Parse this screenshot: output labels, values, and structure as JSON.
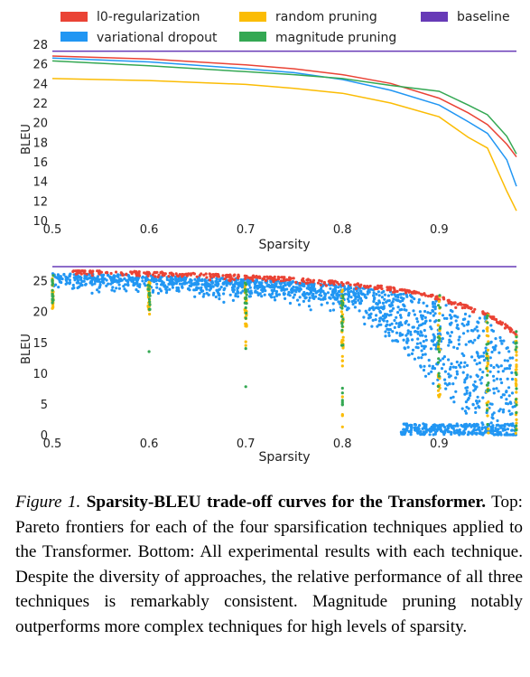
{
  "colors": {
    "l0": "#ea4335",
    "vd": "#2196f3",
    "random": "#fbbc04",
    "magnitude": "#34a853",
    "baseline": "#673ab7"
  },
  "chart_data": [
    {
      "type": "line",
      "title": "",
      "xlabel": "Sparsity",
      "ylabel": "BLEU",
      "xlim": [
        0.5,
        0.98
      ],
      "ylim": [
        10,
        28
      ],
      "xticks": [
        "0.5",
        "0.6",
        "0.7",
        "0.8",
        "0.9"
      ],
      "yticks": [
        "10",
        "12",
        "14",
        "16",
        "18",
        "20",
        "22",
        "24",
        "26",
        "28"
      ],
      "legend": [
        "l0-regularization",
        "random pruning",
        "baseline",
        "variational dropout",
        "magnitude pruning"
      ],
      "series": [
        {
          "name": "l0-regularization",
          "key": "l0",
          "x": [
            0.5,
            0.6,
            0.7,
            0.75,
            0.8,
            0.85,
            0.9,
            0.93,
            0.95,
            0.97,
            0.98
          ],
          "y": [
            26.8,
            26.5,
            25.9,
            25.5,
            24.9,
            24.0,
            22.5,
            21.0,
            19.8,
            17.8,
            16.5
          ]
        },
        {
          "name": "variational dropout",
          "key": "vd",
          "x": [
            0.5,
            0.6,
            0.7,
            0.75,
            0.8,
            0.85,
            0.9,
            0.93,
            0.95,
            0.97,
            0.98
          ],
          "y": [
            26.6,
            26.2,
            25.5,
            25.1,
            24.4,
            23.3,
            21.8,
            20.1,
            18.9,
            16.2,
            13.5
          ]
        },
        {
          "name": "random pruning",
          "key": "random",
          "x": [
            0.5,
            0.6,
            0.7,
            0.75,
            0.8,
            0.85,
            0.9,
            0.93,
            0.95,
            0.97,
            0.98
          ],
          "y": [
            24.5,
            24.3,
            23.9,
            23.5,
            23.0,
            22.0,
            20.6,
            18.5,
            17.4,
            13.0,
            11.0
          ]
        },
        {
          "name": "magnitude pruning",
          "key": "magnitude",
          "x": [
            0.5,
            0.6,
            0.7,
            0.75,
            0.8,
            0.85,
            0.9,
            0.93,
            0.95,
            0.97,
            0.98
          ],
          "y": [
            26.3,
            25.8,
            25.2,
            24.9,
            24.5,
            23.8,
            23.2,
            21.8,
            20.8,
            18.6,
            16.8
          ]
        },
        {
          "name": "baseline",
          "key": "baseline",
          "x": [
            0.5,
            0.98
          ],
          "y": [
            27.3,
            27.3
          ]
        }
      ]
    },
    {
      "type": "scatter",
      "title": "",
      "xlabel": "Sparsity",
      "ylabel": "BLEU",
      "xlim": [
        0.5,
        0.98
      ],
      "ylim": [
        0,
        27
      ],
      "xticks": [
        "0.5",
        "0.6",
        "0.7",
        "0.8",
        "0.9"
      ],
      "yticks": [
        "0",
        "5",
        "10",
        "15",
        "20",
        "25"
      ],
      "baseline": 27.3,
      "series_summary": [
        {
          "name": "l0-regularization",
          "key": "l0",
          "distribution": "dense band just below the top frontier (approx. 24-26.5 BLEU at low sparsity, falling to ~17 at 0.98)"
        },
        {
          "name": "variational dropout",
          "key": "vd",
          "distribution": "broad cloud from ~20-25 BLEU at low sparsity widening to 0-20 BLEU above 0.85 sparsity"
        },
        {
          "name": "random pruning",
          "key": "random",
          "distribution": "vertical columns at sparsity 0.5, 0.6, 0.7, 0.8, 0.9, 0.95, 0.98 spanning ~19-25 and lower"
        },
        {
          "name": "magnitude pruning",
          "key": "magnitude",
          "distribution": "vertical columns at sparsity 0.5, 0.6, 0.7, 0.8, 0.9, 0.95, 0.98 with a few outliers (~13.5 at 0.6, ~8 at 0.7)"
        }
      ]
    }
  ],
  "caption": {
    "label": "Figure 1.",
    "title": "Sparsity-BLEU trade-off curves for the Transformer.",
    "body": "Top: Pareto frontiers for each of the four sparsification techniques applied to the Transformer. Bottom: All experimental results with each technique. Despite the diversity of approaches, the relative performance of all three techniques is remarkably consistent. Magnitude pruning notably outperforms more complex techniques for high levels of sparsity."
  }
}
